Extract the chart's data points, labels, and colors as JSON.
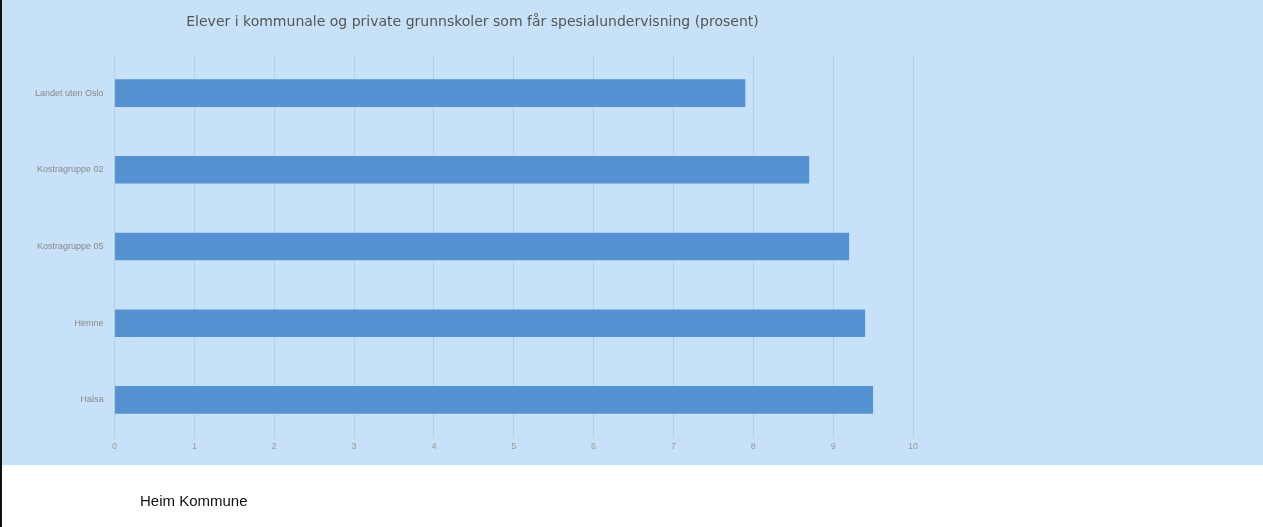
{
  "chart_data": {
    "type": "bar",
    "orientation": "horizontal",
    "title": "Elever i kommunale og private grunnskoler som får spesialundervisning (prosent)",
    "categories": [
      "Landet uten Oslo",
      "Kostragruppe 02",
      "Kostragruppe 05",
      "Hemne",
      "Halsa"
    ],
    "values": [
      7.9,
      8.7,
      9.2,
      9.4,
      9.5
    ],
    "color": "#5592d2",
    "xlim": [
      0,
      10
    ],
    "xticks": [
      0,
      1,
      2,
      3,
      4,
      5,
      6,
      7,
      8,
      9,
      10
    ],
    "grid": "x",
    "annotations": [
      "Heim Kommune"
    ]
  }
}
